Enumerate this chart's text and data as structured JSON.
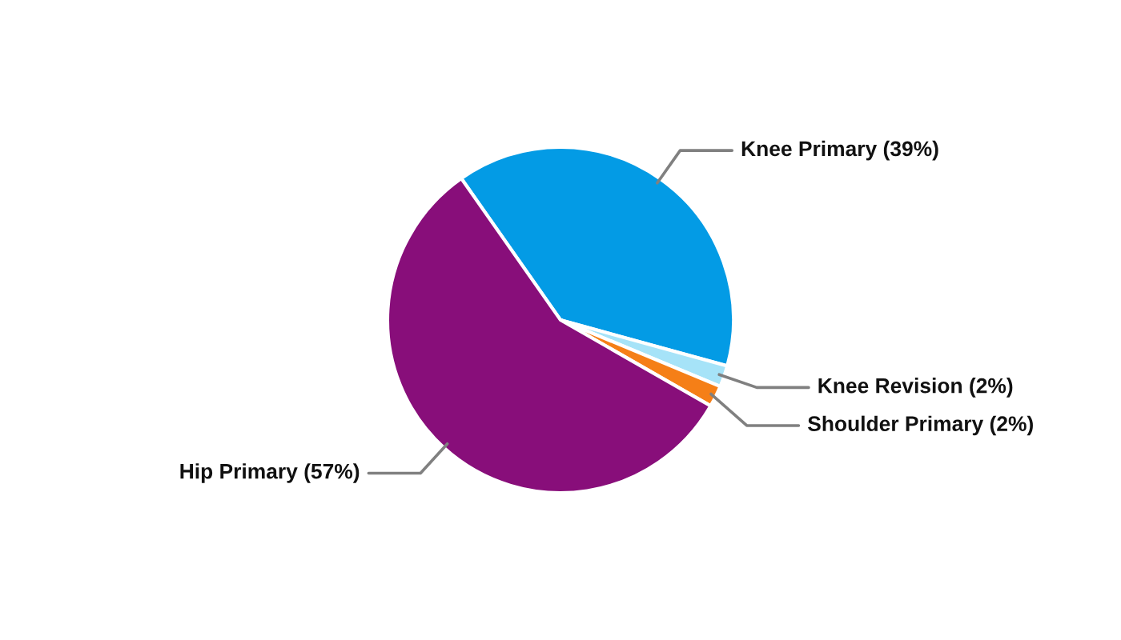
{
  "chart_data": {
    "type": "pie",
    "categories": [
      "Knee Primary",
      "Knee Revision",
      "Shoulder Primary",
      "Hip Primary"
    ],
    "values": [
      39,
      2,
      2,
      57
    ],
    "value_labels": [
      "(39%)",
      "(2%)",
      "(2%)",
      "(57%)"
    ],
    "colors": [
      "#039be5",
      "#a6e3f8",
      "#f57f17",
      "#880e7a"
    ]
  }
}
